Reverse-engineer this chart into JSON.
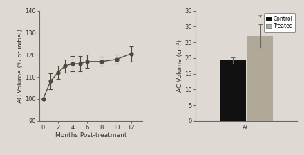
{
  "line_x": [
    0,
    1,
    2,
    3,
    4,
    5,
    6,
    8,
    10,
    12
  ],
  "line_y": [
    100,
    108,
    112,
    115,
    116,
    116,
    117,
    117,
    118,
    120.5
  ],
  "line_yerr": [
    0.0,
    3.5,
    3.0,
    3.0,
    3.5,
    3.5,
    3.0,
    2.0,
    2.0,
    3.5
  ],
  "line_color": "#4a4a3a",
  "line_xlabel": "Months Post-treatment",
  "line_ylabel": "AC Volume (% of initial)",
  "line_xlim": [
    -0.5,
    13.5
  ],
  "line_ylim": [
    90,
    140
  ],
  "line_yticks": [
    90,
    100,
    110,
    120,
    130,
    140
  ],
  "line_xticks": [
    0,
    2,
    4,
    6,
    8,
    10,
    12
  ],
  "bar_control": 19.2,
  "bar_treated": 27.0,
  "bar_control_err": 0.9,
  "bar_treated_err": 3.8,
  "bar_control_color": "#111111",
  "bar_treated_color": "#b0a898",
  "bar_ylabel": "AC Volume (cm²)",
  "bar_ylim": [
    0,
    35
  ],
  "bar_yticks": [
    0,
    5,
    10,
    15,
    20,
    25,
    30,
    35
  ],
  "bar_xlabel": "AC",
  "legend_labels": [
    "Control",
    "Treated"
  ],
  "star_annotation": "*",
  "fig_background": "#dedad3",
  "spine_color": "#666666",
  "tick_color": "#333333"
}
